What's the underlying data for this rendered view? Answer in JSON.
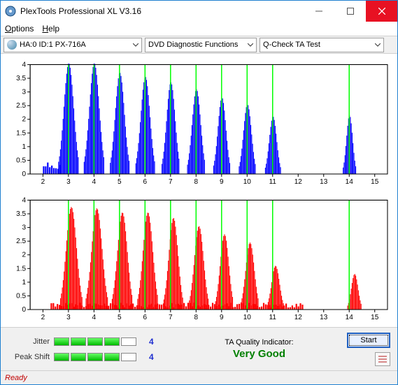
{
  "window": {
    "title": "PlexTools Professional XL V3.16"
  },
  "menu": {
    "options": "Options",
    "help": "Help"
  },
  "toolbar": {
    "device": "HA:0 ID:1  PX-716A",
    "category": "DVD Diagnostic Functions",
    "test": "Q-Check TA Test"
  },
  "chart_top": {
    "type": "bar-density",
    "color": "#0000ff",
    "ylim": [
      0,
      4
    ],
    "yticks": [
      0,
      0.5,
      1,
      1.5,
      2,
      2.5,
      3,
      3.5,
      4
    ],
    "xlim": [
      1.5,
      15.5
    ],
    "xticks": [
      2,
      3,
      4,
      5,
      6,
      7,
      8,
      9,
      10,
      11,
      12,
      13,
      14,
      15
    ],
    "ref_lines_x": [
      3,
      4,
      5,
      6,
      7,
      8,
      9,
      10,
      11,
      14
    ],
    "ref_color": "#00ff00",
    "bg": "#ffffff",
    "axis_color": "#000000",
    "font_size": 10,
    "peaks": [
      {
        "x": 3,
        "h": 4.05,
        "w": 0.8
      },
      {
        "x": 4,
        "h": 4.05,
        "w": 0.8
      },
      {
        "x": 5,
        "h": 3.7,
        "w": 0.75
      },
      {
        "x": 6,
        "h": 3.55,
        "w": 0.75
      },
      {
        "x": 7,
        "h": 3.35,
        "w": 0.7
      },
      {
        "x": 8,
        "h": 3.1,
        "w": 0.7
      },
      {
        "x": 9,
        "h": 2.8,
        "w": 0.65
      },
      {
        "x": 10,
        "h": 2.55,
        "w": 0.65
      },
      {
        "x": 11,
        "h": 2.1,
        "w": 0.6
      },
      {
        "x": 14,
        "h": 2.15,
        "w": 0.5
      }
    ],
    "noise_floor": {
      "start": 2.0,
      "end": 2.7,
      "h": 0.5
    }
  },
  "chart_bottom": {
    "type": "bar-density",
    "color": "#ff0000",
    "ylim": [
      0,
      4
    ],
    "yticks": [
      0,
      0.5,
      1,
      1.5,
      2,
      2.5,
      3,
      3.5,
      4
    ],
    "xlim": [
      1.5,
      15.5
    ],
    "xticks": [
      2,
      3,
      4,
      5,
      6,
      7,
      8,
      9,
      10,
      11,
      12,
      13,
      14,
      15
    ],
    "ref_lines_x": [
      3,
      4,
      5,
      6,
      7,
      8,
      9,
      10,
      11,
      14
    ],
    "ref_color": "#00ff00",
    "bg": "#ffffff",
    "axis_color": "#000000",
    "font_size": 10,
    "peaks": [
      {
        "x": 3.1,
        "h": 3.75,
        "w": 0.85
      },
      {
        "x": 4.1,
        "h": 3.7,
        "w": 0.85
      },
      {
        "x": 5.1,
        "h": 3.55,
        "w": 0.8
      },
      {
        "x": 6.1,
        "h": 3.55,
        "w": 0.8
      },
      {
        "x": 7.1,
        "h": 3.35,
        "w": 0.75
      },
      {
        "x": 8.1,
        "h": 3.05,
        "w": 0.75
      },
      {
        "x": 9.1,
        "h": 2.75,
        "w": 0.7
      },
      {
        "x": 10.1,
        "h": 2.45,
        "w": 0.7
      },
      {
        "x": 11.1,
        "h": 1.6,
        "w": 0.65
      },
      {
        "x": 14.2,
        "h": 1.3,
        "w": 0.55
      }
    ],
    "noise_floor": {
      "start": 2.3,
      "end": 12.2,
      "h": 0.25
    }
  },
  "metrics": {
    "jitter_label": "Jitter",
    "jitter_segments": 5,
    "jitter_filled": 4,
    "jitter_value": "4",
    "peakshift_label": "Peak Shift",
    "peakshift_segments": 5,
    "peakshift_filled": 4,
    "peakshift_value": "4",
    "ta_label": "TA Quality Indicator:",
    "ta_value": "Very Good",
    "start_label": "Start"
  },
  "status": {
    "text": "Ready"
  }
}
